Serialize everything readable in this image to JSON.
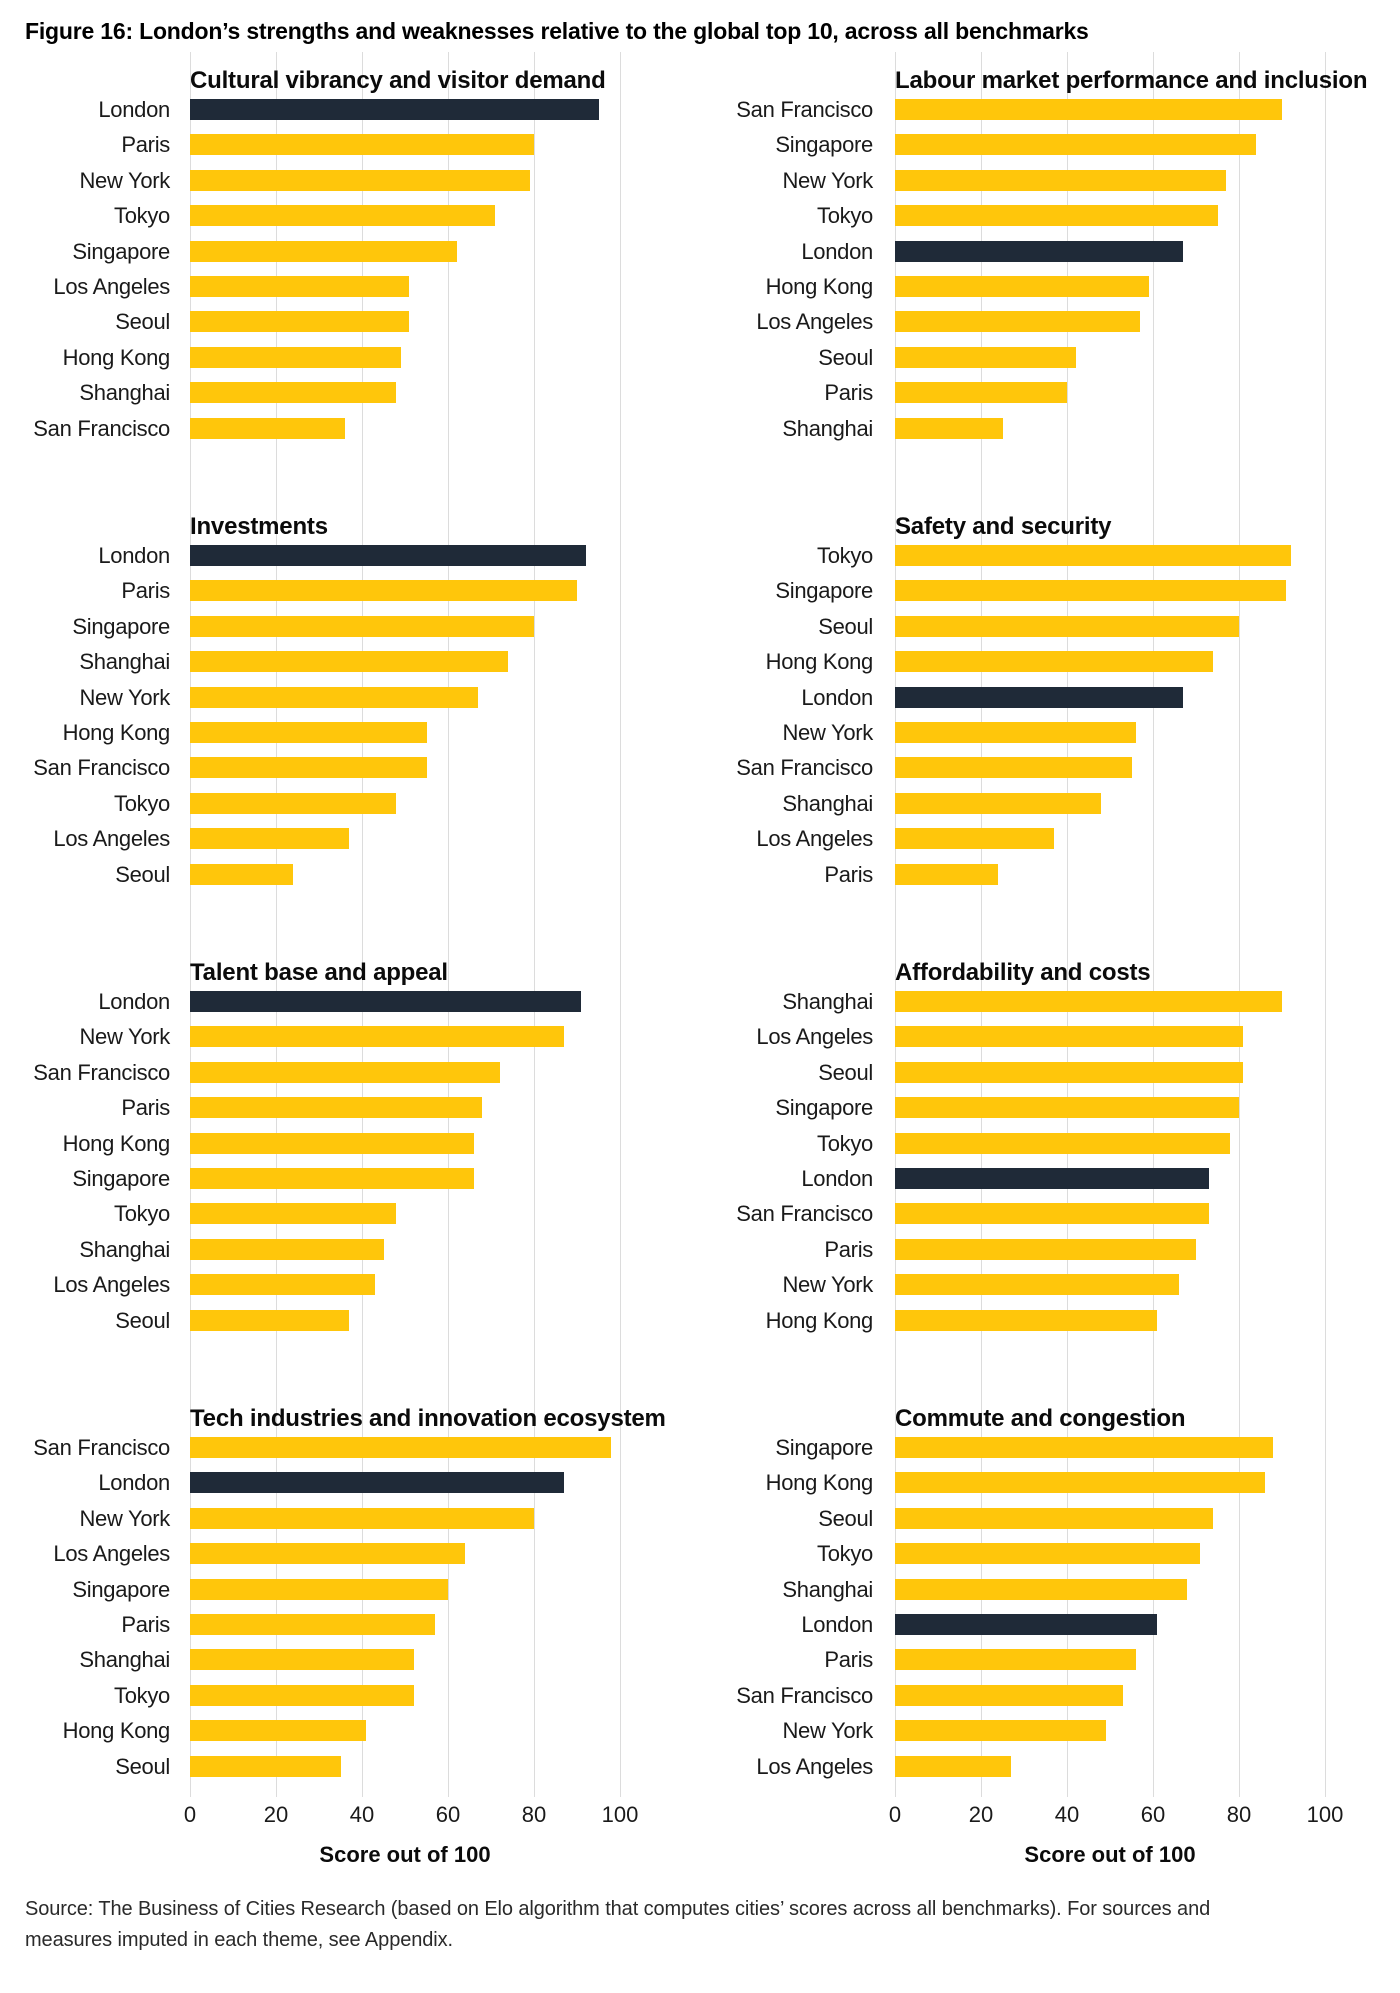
{
  "figure": {
    "title": "Figure 16: London’s strengths and weaknesses relative to the global top 10, across all benchmarks"
  },
  "source": "Source: The Business of Cities Research (based on Elo algorithm that computes cities’ scores across all benchmarks). For sources and measures imputed in each theme, see Appendix.",
  "highlight_city": "London",
  "colors": {
    "bar_default": "#FFC60B",
    "bar_highlight": "#1F2A38",
    "gridline": "#DCDCDC"
  },
  "axis": {
    "ticks": [
      0,
      20,
      40,
      60,
      80,
      100
    ],
    "label": "Score out of 100",
    "xlim": [
      0,
      100
    ],
    "grid": "vertical"
  },
  "chart_data": [
    {
      "type": "bar",
      "orientation": "horizontal",
      "title": "Cultural vibrancy and visitor demand",
      "categories": [
        "London",
        "Paris",
        "New York",
        "Tokyo",
        "Singapore",
        "Los Angeles",
        "Seoul",
        "Hong Kong",
        "Shanghai",
        "San Francisco"
      ],
      "values": [
        95,
        80,
        79,
        71,
        62,
        51,
        51,
        49,
        48,
        36
      ],
      "xlim": [
        0,
        100
      ]
    },
    {
      "type": "bar",
      "orientation": "horizontal",
      "title": "Labour market performance and inclusion",
      "categories": [
        "San Francisco",
        "Singapore",
        "New York",
        "Tokyo",
        "London",
        "Hong Kong",
        "Los Angeles",
        "Seoul",
        "Paris",
        "Shanghai"
      ],
      "values": [
        90,
        84,
        77,
        75,
        67,
        59,
        57,
        42,
        40,
        25
      ],
      "xlim": [
        0,
        100
      ]
    },
    {
      "type": "bar",
      "orientation": "horizontal",
      "title": "Investments",
      "categories": [
        "London",
        "Paris",
        "Singapore",
        "Shanghai",
        "New York",
        "Hong Kong",
        "San Francisco",
        "Tokyo",
        "Los Angeles",
        "Seoul"
      ],
      "values": [
        92,
        90,
        80,
        74,
        67,
        55,
        55,
        48,
        37,
        24
      ],
      "xlim": [
        0,
        100
      ]
    },
    {
      "type": "bar",
      "orientation": "horizontal",
      "title": "Safety and security",
      "categories": [
        "Tokyo",
        "Singapore",
        "Seoul",
        "Hong Kong",
        "London",
        "New York",
        "San Francisco",
        "Shanghai",
        "Los Angeles",
        "Paris"
      ],
      "values": [
        92,
        91,
        80,
        74,
        67,
        56,
        55,
        48,
        37,
        24
      ],
      "xlim": [
        0,
        100
      ]
    },
    {
      "type": "bar",
      "orientation": "horizontal",
      "title": "Talent base and appeal",
      "categories": [
        "London",
        "New York",
        "San Francisco",
        "Paris",
        "Hong Kong",
        "Singapore",
        "Tokyo",
        "Shanghai",
        "Los Angeles",
        "Seoul"
      ],
      "values": [
        91,
        87,
        72,
        68,
        66,
        66,
        48,
        45,
        43,
        37
      ],
      "xlim": [
        0,
        100
      ]
    },
    {
      "type": "bar",
      "orientation": "horizontal",
      "title": "Affordability and costs",
      "categories": [
        "Shanghai",
        "Los Angeles",
        "Seoul",
        "Singapore",
        "Tokyo",
        "London",
        "San Francisco",
        "Paris",
        "New York",
        "Hong Kong"
      ],
      "values": [
        90,
        81,
        81,
        80,
        78,
        73,
        73,
        70,
        66,
        61
      ],
      "xlim": [
        0,
        100
      ]
    },
    {
      "type": "bar",
      "orientation": "horizontal",
      "title": "Tech industries and innovation ecosystem",
      "categories": [
        "San Francisco",
        "London",
        "New York",
        "Los Angeles",
        "Singapore",
        "Paris",
        "Shanghai",
        "Tokyo",
        "Hong Kong",
        "Seoul"
      ],
      "values": [
        98,
        87,
        80,
        64,
        60,
        57,
        52,
        52,
        41,
        35
      ],
      "xlim": [
        0,
        100
      ]
    },
    {
      "type": "bar",
      "orientation": "horizontal",
      "title": "Commute and congestion",
      "categories": [
        "Singapore",
        "Hong Kong",
        "Seoul",
        "Tokyo",
        "Shanghai",
        "London",
        "Paris",
        "San Francisco",
        "New York",
        "Los Angeles"
      ],
      "values": [
        88,
        86,
        74,
        71,
        68,
        61,
        56,
        53,
        49,
        27
      ],
      "xlim": [
        0,
        100
      ]
    }
  ]
}
